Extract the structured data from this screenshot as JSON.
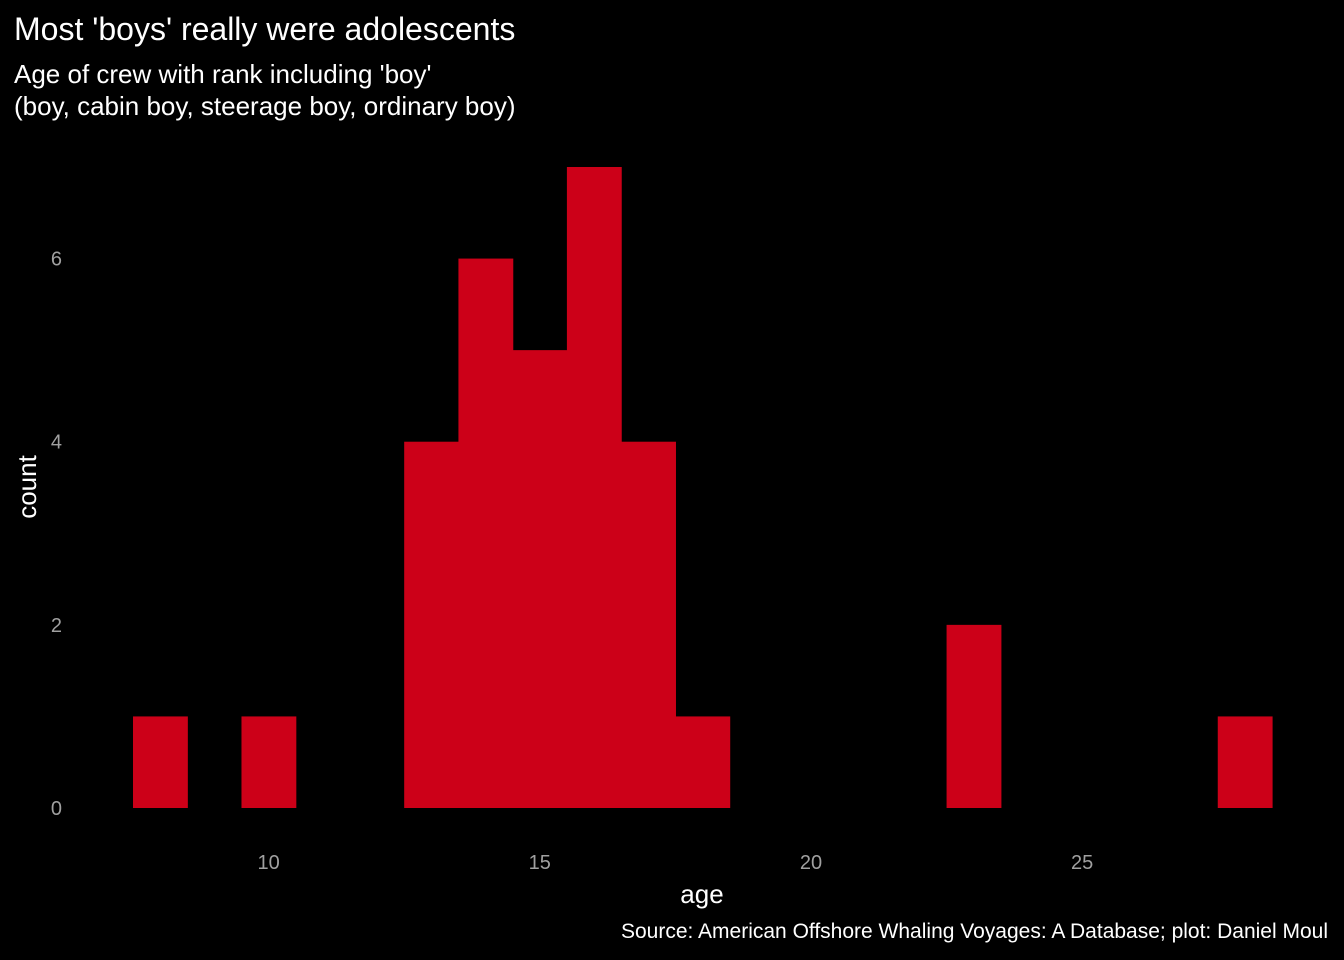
{
  "title": "Most 'boys' really were adolescents",
  "subtitle_lines": [
    "Age of crew with rank including 'boy'",
    "(boy, cabin boy, steerage boy, ordinary boy)"
  ],
  "caption": "Source: American Offshore Whaling Voyages: A Database; plot: Daniel Moul",
  "chart_data": {
    "type": "bar",
    "subtype": "histogram",
    "title": "Most 'boys' really were adolescents",
    "subtitle": "Age of crew with rank including 'boy'\n(boy, cabin boy, steerage boy, ordinary boy)",
    "xlabel": "age",
    "ylabel": "count",
    "bin_width": 1,
    "bins": [
      {
        "age": 8,
        "count": 1
      },
      {
        "age": 10,
        "count": 1
      },
      {
        "age": 13,
        "count": 4
      },
      {
        "age": 14,
        "count": 6
      },
      {
        "age": 15,
        "count": 5
      },
      {
        "age": 16,
        "count": 7
      },
      {
        "age": 17,
        "count": 4
      },
      {
        "age": 18,
        "count": 1
      },
      {
        "age": 23,
        "count": 2
      },
      {
        "age": 28,
        "count": 1
      }
    ],
    "xlim": [
      7.5,
      28.5
    ],
    "ylim": [
      0,
      7
    ],
    "x_ticks": [
      10,
      15,
      20,
      25
    ],
    "y_ticks": [
      0,
      2,
      4,
      6
    ],
    "bar_color": "#cc0018",
    "background": "#000000",
    "grid": false,
    "legend": "none"
  }
}
